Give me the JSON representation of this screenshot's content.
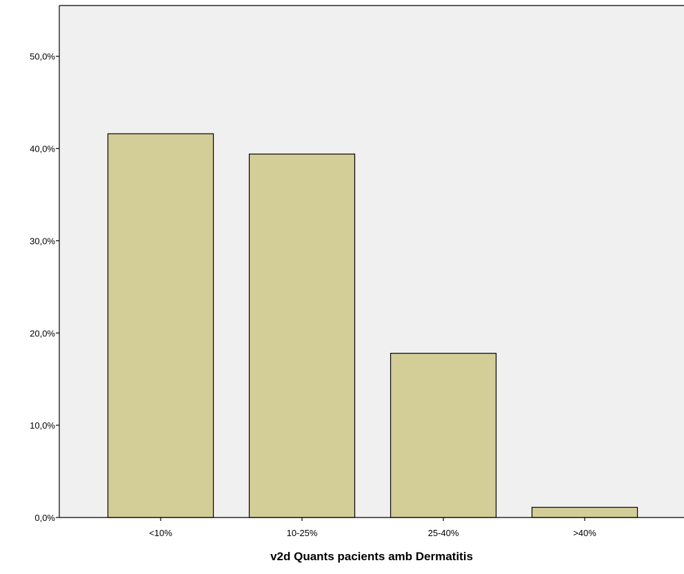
{
  "chart_data": {
    "type": "bar",
    "title": "",
    "xlabel": "v2d Quants pacients amb Dermatitis",
    "ylabel": "",
    "categories": [
      "<10%",
      "10-25%",
      "25-40%",
      ">40%"
    ],
    "values": [
      41.6,
      39.4,
      17.8,
      1.1
    ],
    "ylim": [
      0,
      55.5
    ],
    "yticks": [
      0,
      10,
      20,
      30,
      40,
      50
    ],
    "ytick_labels": [
      "0,0%",
      "10,0%",
      "20,0%",
      "30,0%",
      "40,0%",
      "50,0%"
    ],
    "grid": false,
    "legend": "none",
    "colors": {
      "bar_fill": "#d3ce98",
      "bar_stroke": "#000000",
      "plot_background": "#f0f0f0",
      "axis": "#000000"
    }
  }
}
